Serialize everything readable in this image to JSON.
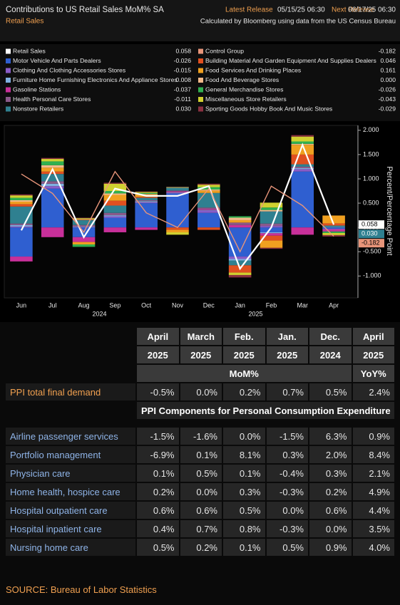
{
  "chart_data": {
    "type": "bar",
    "title": "Contributions to US Retail Sales MoM% SA",
    "subtitle": "Retail Sales",
    "release_labels": [
      "Latest Release",
      "Next Release"
    ],
    "release_dates": [
      "05/15/25 06:30",
      "06/17/25 06:30"
    ],
    "source_note": "Calculated by Bloomberg using data from the US Census Bureau",
    "y_label": "Percent/Percentage Point",
    "categories": [
      "Jun",
      "Jul",
      "Aug",
      "Sep",
      "Oct",
      "Nov",
      "Dec",
      "Jan",
      "Feb",
      "Mar",
      "Apr"
    ],
    "x_group_labels": [
      null,
      null,
      null,
      "2024",
      null,
      null,
      null,
      null,
      "2025",
      null,
      null
    ],
    "ylim": [
      -1.45,
      2.1
    ],
    "yticks": [
      {
        "value": -1,
        "label": "-1.000"
      },
      {
        "value": -0.5,
        "label": "-0.500"
      },
      {
        "value": 0,
        "label": "0.000"
      },
      {
        "value": 0.5,
        "label": "0.500"
      },
      {
        "value": 1,
        "label": "1.000"
      },
      {
        "value": 1.5,
        "label": "1.500"
      },
      {
        "value": 2,
        "label": "2.000"
      }
    ],
    "grid": false,
    "series": [
      {
        "name": "Retail Sales",
        "type": "line",
        "color": "#ffffff",
        "axis_tag": true,
        "values": [
          -0.06,
          1.2,
          -0.2,
          0.8,
          0.65,
          0.65,
          0.85,
          -0.85,
          0.0,
          1.7,
          0.058
        ],
        "value_labels": [
          null,
          null,
          null,
          null,
          null,
          null,
          null,
          null,
          null,
          null,
          "0.058"
        ]
      },
      {
        "name": "Motor Vehicle And Parts Dealers",
        "type": "bar",
        "color": "#2f5fd0",
        "values": [
          -0.6,
          0.8,
          -0.2,
          0.2,
          0.5,
          0.7,
          0.3,
          -0.6,
          -0.1,
          1.15,
          -0.026
        ],
        "value_labels": [
          null,
          null,
          null,
          null,
          null,
          null,
          null,
          null,
          null,
          null,
          "-0.026"
        ]
      },
      {
        "name": "Clothing And Clothing Accessories Stores",
        "type": "bar",
        "color": "#8a5cc8",
        "values": [
          0.02,
          0.05,
          0.01,
          0.03,
          0.02,
          0.01,
          0.05,
          -0.05,
          0.03,
          0.05,
          -0.015
        ],
        "value_labels": [
          null,
          null,
          null,
          null,
          null,
          null,
          null,
          null,
          null,
          null,
          "-0.015"
        ]
      },
      {
        "name": "Furniture Home Furnishing Electronics And Appliance Stores",
        "type": "bar",
        "color": "#7fb0e0",
        "values": [
          0.03,
          0.05,
          0.01,
          0.02,
          0.02,
          0.01,
          0.01,
          -0.03,
          -0.02,
          0.02,
          0.008
        ],
        "value_labels": [
          null,
          null,
          null,
          null,
          null,
          null,
          null,
          null,
          null,
          null,
          "0.008"
        ]
      },
      {
        "name": "Gasoline Stations",
        "type": "bar",
        "color": "#c8309a",
        "values": [
          -0.1,
          -0.2,
          -0.1,
          -0.1,
          -0.05,
          0.02,
          0.02,
          0.05,
          -0.05,
          -0.15,
          -0.037
        ],
        "value_labels": [
          null,
          null,
          null,
          null,
          null,
          null,
          null,
          null,
          null,
          null,
          "-0.037"
        ]
      },
      {
        "name": "Health Personal Care Stores",
        "type": "bar",
        "color": "#8a5a8a",
        "values": [
          0.03,
          0.05,
          0.03,
          0.05,
          0.02,
          0.02,
          0.03,
          0.05,
          0.05,
          0.03,
          -0.011
        ],
        "value_labels": [
          null,
          null,
          null,
          null,
          null,
          null,
          null,
          null,
          null,
          null,
          "-0.011"
        ]
      },
      {
        "name": "Nonstore Retailers",
        "type": "bar",
        "color": "#2f8090",
        "axis_tag": true,
        "values": [
          0.35,
          0.15,
          0.1,
          0.15,
          0.05,
          0.05,
          0.3,
          -0.1,
          0.25,
          0.05,
          0.03
        ],
        "value_labels": [
          null,
          null,
          null,
          null,
          null,
          null,
          null,
          null,
          null,
          null,
          "0.030"
        ]
      },
      {
        "name": "Control Group",
        "type": "line",
        "color": "#e8957a",
        "axis_tag": true,
        "values": [
          1.1,
          0.7,
          -0.1,
          1.15,
          0.3,
          0.0,
          0.8,
          -0.5,
          0.85,
          0.45,
          -0.182
        ],
        "value_labels": [
          null,
          null,
          null,
          null,
          null,
          null,
          null,
          null,
          null,
          null,
          "-0.182"
        ]
      },
      {
        "name": "Building Material And Garden Equipment And Supplies Dealers",
        "type": "bar",
        "color": "#e05020",
        "values": [
          0.05,
          0.05,
          0.01,
          0.1,
          0.02,
          -0.05,
          -0.05,
          -0.15,
          -0.1,
          0.2,
          0.046
        ],
        "value_labels": [
          null,
          null,
          null,
          null,
          null,
          null,
          null,
          null,
          null,
          null,
          "0.046"
        ]
      },
      {
        "name": "Food Services And Drinking Places",
        "type": "bar",
        "color": "#f0a020",
        "values": [
          0.05,
          0.08,
          -0.05,
          0.12,
          0.05,
          -0.05,
          0.05,
          0.05,
          -0.15,
          0.2,
          0.161
        ],
        "value_labels": [
          null,
          null,
          null,
          null,
          null,
          null,
          null,
          null,
          null,
          null,
          "0.161"
        ]
      },
      {
        "name": "Food And Beverage Stores",
        "type": "bar",
        "color": "#f3b98a",
        "values": [
          0.03,
          0.05,
          0.01,
          0.03,
          0.01,
          0.01,
          0.02,
          0.05,
          0.03,
          0.02,
          0
        ],
        "value_labels": [
          null,
          null,
          null,
          null,
          null,
          null,
          null,
          null,
          null,
          null,
          "0.000"
        ]
      },
      {
        "name": "General Merchandise Stores",
        "type": "bar",
        "color": "#30b050",
        "values": [
          0.05,
          0.08,
          -0.05,
          0.05,
          0.02,
          0.01,
          0.05,
          0.03,
          0.05,
          0.05,
          -0.026
        ],
        "value_labels": [
          null,
          null,
          null,
          null,
          null,
          null,
          null,
          null,
          null,
          null,
          "-0.026"
        ]
      },
      {
        "name": "Miscellaneous Store Retailers",
        "type": "bar",
        "color": "#d0d030",
        "values": [
          0.05,
          0.05,
          0.02,
          0.15,
          0.02,
          -0.05,
          0.05,
          -0.05,
          0.1,
          0.1,
          -0.043
        ],
        "value_labels": [
          null,
          null,
          null,
          null,
          null,
          null,
          null,
          null,
          null,
          null,
          "-0.043"
        ]
      },
      {
        "name": "Sporting Goods Hobby Book And Music Stores",
        "type": "bar",
        "color": "#8a3040",
        "values": [
          0.02,
          0.02,
          0.01,
          0.02,
          0.01,
          0.01,
          0.02,
          -0.05,
          -0.02,
          0.03,
          -0.029
        ],
        "value_labels": [
          null,
          null,
          null,
          null,
          null,
          null,
          null,
          null,
          null,
          null,
          "-0.029"
        ]
      }
    ]
  },
  "table": {
    "columns": [
      [
        "April",
        "2025"
      ],
      [
        "March",
        "2025"
      ],
      [
        "Feb.",
        "2025"
      ],
      [
        "Jan.",
        "2025"
      ],
      [
        "Dec.",
        "2024"
      ],
      [
        "April",
        "2025"
      ]
    ],
    "measures": [
      "MoM%",
      "YoY%"
    ],
    "total_row": {
      "label": "PPI total final demand",
      "values": [
        "-0.5%",
        "0.0%",
        "0.2%",
        "0.7%",
        "0.5%",
        "2.4%"
      ]
    },
    "section": "PPI Components for Personal Consumption Expenditure",
    "rows": [
      {
        "label": "Airline passenger services",
        "values": [
          "-1.5%",
          "-1.6%",
          "0.0%",
          "-1.5%",
          "6.3%",
          "0.9%"
        ]
      },
      {
        "label": "Portfolio management",
        "values": [
          "-6.9%",
          "0.1%",
          "8.1%",
          "0.3%",
          "2.0%",
          "8.4%"
        ]
      },
      {
        "label": "Physician care",
        "values": [
          "0.1%",
          "0.5%",
          "0.1%",
          "-0.4%",
          "0.3%",
          "2.1%"
        ]
      },
      {
        "label": "Home health, hospice care",
        "values": [
          "0.2%",
          "0.0%",
          "0.3%",
          "-0.3%",
          "0.2%",
          "4.9%"
        ]
      },
      {
        "label": "Hospital outpatient care",
        "values": [
          "0.6%",
          "0.6%",
          "0.5%",
          "0.0%",
          "0.6%",
          "4.4%"
        ]
      },
      {
        "label": "Hospital inpatient care",
        "values": [
          "0.4%",
          "0.7%",
          "0.8%",
          "-0.3%",
          "0.0%",
          "3.5%"
        ]
      },
      {
        "label": "Nursing home care",
        "values": [
          "0.5%",
          "0.2%",
          "0.1%",
          "0.5%",
          "0.9%",
          "4.0%"
        ]
      }
    ],
    "source": "SOURCE: Bureau of Labor Statistics"
  }
}
